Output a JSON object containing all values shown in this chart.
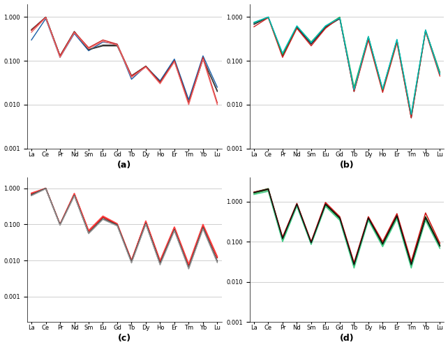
{
  "elements": [
    "La",
    "Ce",
    "Pr",
    "Nd",
    "Sm",
    "Eu",
    "Gd",
    "Tb",
    "Dy",
    "Ho",
    "Er",
    "Tm",
    "Yb",
    "Lu"
  ],
  "background": "#ffffff",
  "subplot_labels": [
    "(a)",
    "(b)",
    "(c)",
    "(d)"
  ],
  "panels": {
    "a": {
      "ylim": [
        0.001,
        2.0
      ],
      "yticks": [
        0.001,
        0.01,
        0.1,
        1.0
      ],
      "series": [
        {
          "color": "#1a5fa8",
          "lw": 1.0,
          "values": [
            0.3,
            0.92,
            0.12,
            0.42,
            0.17,
            0.27,
            0.24,
            0.038,
            0.075,
            0.035,
            0.11,
            0.013,
            0.13,
            0.025
          ]
        },
        {
          "color": "#222222",
          "lw": 1.0,
          "values": [
            0.5,
            1.0,
            0.13,
            0.46,
            0.18,
            0.22,
            0.22,
            0.045,
            0.075,
            0.032,
            0.1,
            0.011,
            0.11,
            0.02
          ]
        },
        {
          "color": "#444444",
          "lw": 1.0,
          "values": [
            0.52,
            0.99,
            0.13,
            0.47,
            0.18,
            0.23,
            0.23,
            0.046,
            0.076,
            0.033,
            0.1,
            0.011,
            0.11,
            0.021
          ]
        },
        {
          "color": "#cc2222",
          "lw": 1.0,
          "values": [
            0.5,
            0.99,
            0.13,
            0.46,
            0.2,
            0.3,
            0.24,
            0.045,
            0.075,
            0.032,
            0.1,
            0.011,
            0.12,
            0.011
          ]
        },
        {
          "color": "#ee6666",
          "lw": 1.0,
          "values": [
            0.45,
            0.97,
            0.12,
            0.44,
            0.19,
            0.28,
            0.23,
            0.042,
            0.072,
            0.03,
            0.095,
            0.01,
            0.11,
            0.01
          ]
        }
      ]
    },
    "b": {
      "ylim": [
        0.001,
        2.0
      ],
      "yticks": [
        0.001,
        0.01,
        0.1,
        1.0
      ],
      "series": [
        {
          "color": "#1a5fa8",
          "lw": 1.0,
          "values": [
            0.72,
            1.0,
            0.14,
            0.6,
            0.25,
            0.6,
            0.95,
            0.022,
            0.35,
            0.022,
            0.3,
            0.0055,
            0.5,
            0.055
          ]
        },
        {
          "color": "#222222",
          "lw": 1.0,
          "values": [
            0.68,
            0.99,
            0.13,
            0.58,
            0.24,
            0.58,
            0.92,
            0.02,
            0.33,
            0.021,
            0.28,
            0.005,
            0.48,
            0.05
          ]
        },
        {
          "color": "#cc2222",
          "lw": 1.0,
          "values": [
            0.6,
            0.97,
            0.12,
            0.55,
            0.22,
            0.55,
            0.98,
            0.02,
            0.3,
            0.019,
            0.26,
            0.005,
            0.47,
            0.045
          ]
        },
        {
          "color": "#22aa44",
          "lw": 1.0,
          "values": [
            0.74,
            1.0,
            0.14,
            0.62,
            0.27,
            0.62,
            1.0,
            0.025,
            0.36,
            0.022,
            0.3,
            0.006,
            0.5,
            0.055
          ]
        },
        {
          "color": "#00bbbb",
          "lw": 1.0,
          "values": [
            0.76,
            1.0,
            0.15,
            0.63,
            0.26,
            0.63,
            0.96,
            0.022,
            0.36,
            0.023,
            0.31,
            0.006,
            0.51,
            0.05
          ]
        }
      ]
    },
    "c": {
      "ylim": [
        0.0002,
        2.0
      ],
      "yticks": [
        0.001,
        0.01,
        0.1,
        1.0
      ],
      "series": [
        {
          "color": "#cc0000",
          "lw": 1.2,
          "values": [
            0.7,
            1.0,
            0.1,
            0.7,
            0.065,
            0.16,
            0.1,
            0.01,
            0.12,
            0.0095,
            0.082,
            0.0075,
            0.095,
            0.012
          ]
        },
        {
          "color": "#ff4444",
          "lw": 1.2,
          "values": [
            0.74,
            0.99,
            0.1,
            0.72,
            0.068,
            0.17,
            0.105,
            0.01,
            0.125,
            0.01,
            0.085,
            0.008,
            0.1,
            0.013
          ]
        },
        {
          "color": "#111111",
          "lw": 0.9,
          "values": [
            0.64,
            1.0,
            0.098,
            0.63,
            0.057,
            0.14,
            0.095,
            0.0092,
            0.106,
            0.0082,
            0.07,
            0.0062,
            0.08,
            0.0095
          ]
        },
        {
          "color": "#333333",
          "lw": 0.9,
          "values": [
            0.66,
            0.99,
            0.099,
            0.64,
            0.058,
            0.145,
            0.097,
            0.0094,
            0.108,
            0.0084,
            0.072,
            0.0064,
            0.082,
            0.0097
          ]
        },
        {
          "color": "#555555",
          "lw": 0.9,
          "values": [
            0.67,
            0.98,
            0.097,
            0.64,
            0.057,
            0.143,
            0.095,
            0.009,
            0.105,
            0.008,
            0.07,
            0.0062,
            0.079,
            0.0093
          ]
        },
        {
          "color": "#777777",
          "lw": 0.9,
          "values": [
            0.63,
            0.97,
            0.096,
            0.62,
            0.056,
            0.14,
            0.093,
            0.0088,
            0.103,
            0.0078,
            0.068,
            0.006,
            0.077,
            0.009
          ]
        },
        {
          "color": "#999999",
          "lw": 0.9,
          "values": [
            0.62,
            0.96,
            0.094,
            0.61,
            0.055,
            0.137,
            0.09,
            0.0085,
            0.1,
            0.0075,
            0.066,
            0.0058,
            0.074,
            0.0087
          ]
        }
      ]
    },
    "d": {
      "ylim": [
        0.001,
        4.0
      ],
      "yticks": [
        0.001,
        0.01,
        0.1,
        1.0
      ],
      "series": [
        {
          "color": "#006600",
          "lw": 1.1,
          "values": [
            1.7,
            2.1,
            0.12,
            0.88,
            0.095,
            0.88,
            0.4,
            0.028,
            0.4,
            0.09,
            0.45,
            0.028,
            0.42,
            0.082
          ]
        },
        {
          "color": "#228833",
          "lw": 1.1,
          "values": [
            1.6,
            1.95,
            0.11,
            0.82,
            0.09,
            0.82,
            0.37,
            0.025,
            0.37,
            0.082,
            0.41,
            0.025,
            0.38,
            0.076
          ]
        },
        {
          "color": "#44cc88",
          "lw": 1.1,
          "values": [
            1.5,
            1.8,
            0.1,
            0.76,
            0.085,
            0.76,
            0.34,
            0.022,
            0.34,
            0.075,
            0.37,
            0.022,
            0.34,
            0.068
          ]
        },
        {
          "color": "#cc1111",
          "lw": 1.1,
          "values": [
            1.72,
            2.05,
            0.13,
            0.9,
            0.1,
            0.95,
            0.42,
            0.03,
            0.42,
            0.1,
            0.5,
            0.032,
            0.52,
            0.092
          ]
        },
        {
          "color": "#111111",
          "lw": 1.1,
          "values": [
            1.68,
            2.05,
            0.12,
            0.86,
            0.094,
            0.86,
            0.39,
            0.027,
            0.39,
            0.088,
            0.44,
            0.027,
            0.4,
            0.079
          ]
        }
      ]
    }
  }
}
